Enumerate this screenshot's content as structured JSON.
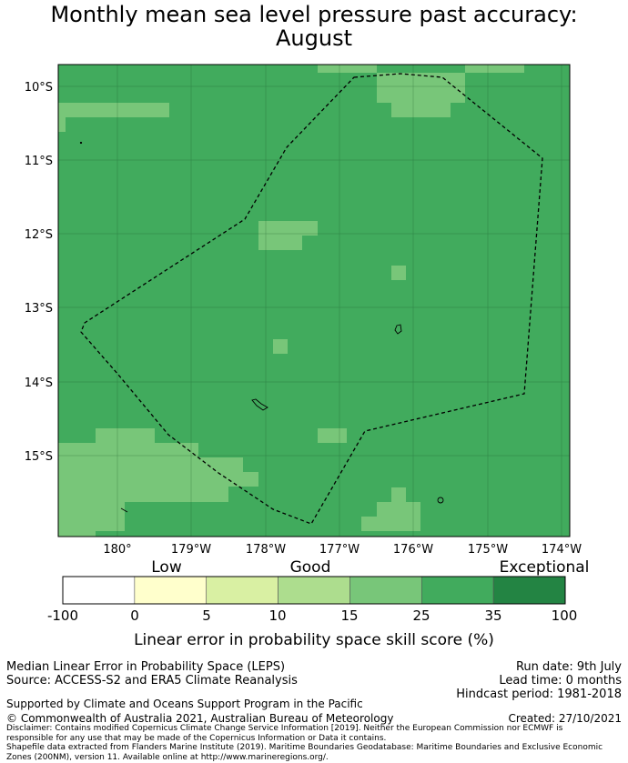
{
  "title_line1": "Monthly mean sea level pressure past accuracy:",
  "title_line2": "August",
  "colors": {
    "background_tile": "#41ab5d",
    "light_tile": "#78c679",
    "frame": "#000000"
  },
  "map": {
    "lat_labels": [
      "10°S",
      "11°S",
      "12°S",
      "13°S",
      "14°S",
      "15°S"
    ],
    "lon_labels": [
      "180°",
      "179°W",
      "178°W",
      "177°W",
      "176°W",
      "175°W",
      "174°W"
    ]
  },
  "colorbar": {
    "categories": [
      "Low",
      "Good",
      "Exceptional"
    ],
    "tick_labels": [
      "-100",
      "0",
      "5",
      "10",
      "15",
      "25",
      "35",
      "100"
    ],
    "bin_colors": [
      "#ffffff",
      "#ffffcc",
      "#d9f0a3",
      "#addd8e",
      "#78c679",
      "#41ab5d",
      "#238443"
    ],
    "label": "Linear error in probability space skill score (%)"
  },
  "footer": {
    "method": "Median Linear Error in Probability Space (LEPS)",
    "source": "Source: ACCESS-S2 and ERA5 Climate Reanalysis",
    "support": "Supported by Climate and Oceans Support Program in the Pacific",
    "copyright": "© Commonwealth of Australia 2021, Australian Bureau of Meteorology",
    "run_date": "Run date: 9th July",
    "lead_time": "Lead time: 0 months",
    "hindcast": "Hindcast period: 1981-2018",
    "created": "Created: 27/10/2021",
    "disclaimer_lines": [
      "Disclaimer: Contains modified Copernicus Climate Change Service Information [2019]. Neither the European Commission nor ECMWF is",
      "responsible for any use that may be made of the Copernicus Information or Data it contains.",
      "Shapefile data extracted from Flanders Marine Institute (2019). Maritime Boundaries Geodatabase: Maritime Boundaries and Exclusive Economic",
      "Zones (200NM), version 11. Available online at http://www.marineregions.org/."
    ]
  }
}
